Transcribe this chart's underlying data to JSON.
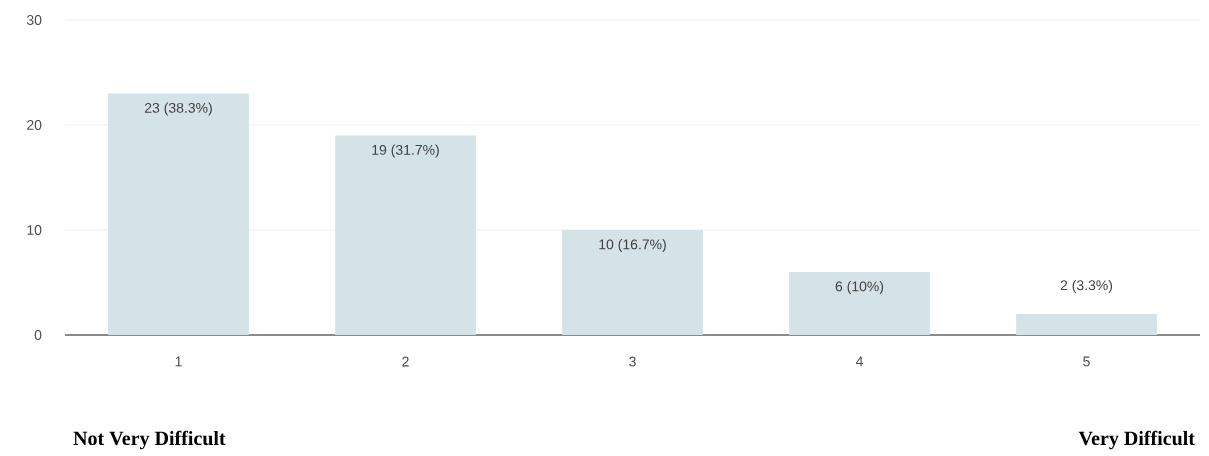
{
  "chart_data": {
    "type": "bar",
    "categories": [
      "1",
      "2",
      "3",
      "4",
      "5"
    ],
    "values": [
      23,
      19,
      10,
      6,
      2
    ],
    "value_labels": [
      "23 (38.3%)",
      "19 (31.7%)",
      "10 (16.7%)",
      "6 (10%)",
      "2 (3.3%)"
    ],
    "color": "#d3e3e8",
    "ylim": [
      0,
      30
    ],
    "yticks": [
      0,
      10,
      20,
      30
    ],
    "grid": "y",
    "annotations": [
      "Not Very Difficult",
      "Very Difficult"
    ]
  }
}
